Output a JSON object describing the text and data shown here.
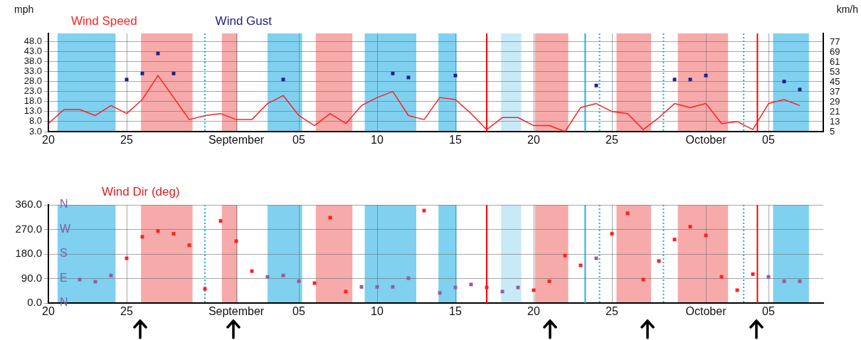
{
  "chart_data": [
    {
      "type": "line",
      "ylabel": "mph",
      "y2label": "km/h",
      "legend": "top left",
      "grid": true,
      "xlim": [
        "--08-20",
        "--10-08T12:00"
      ],
      "xticks": [
        {
          "value": "--08-20",
          "label": "20"
        },
        {
          "value": "--08-25",
          "label": "25"
        },
        {
          "value": "--09-01",
          "label": "September"
        },
        {
          "value": "--09-05",
          "label": "05"
        },
        {
          "value": "--09-10",
          "label": "10"
        },
        {
          "value": "--09-15",
          "label": "15"
        },
        {
          "value": "--09-20",
          "label": "20"
        },
        {
          "value": "--09-25",
          "label": "25"
        },
        {
          "value": "--10-01",
          "label": "October"
        },
        {
          "value": "--10-05",
          "label": "05"
        }
      ],
      "ylim": [
        3,
        52
      ],
      "yticks": [
        {
          "value": 3,
          "label": "3.0"
        },
        {
          "value": 8,
          "label": "8.0"
        },
        {
          "value": 13,
          "label": "13.0"
        },
        {
          "value": 18,
          "label": "18.0"
        },
        {
          "value": 23,
          "label": "23.0"
        },
        {
          "value": 28,
          "label": "28.0"
        },
        {
          "value": 33,
          "label": "33.0"
        },
        {
          "value": 38,
          "label": "38.0"
        },
        {
          "value": 43,
          "label": "43.0"
        },
        {
          "value": 48,
          "label": "48.0"
        }
      ],
      "y2lim": [
        5,
        84
      ],
      "y2ticks": [
        5,
        13,
        21,
        29,
        37,
        45,
        53,
        61,
        69,
        77
      ],
      "series": [
        {
          "name": "Wind Speed",
          "type": "line",
          "marker": "none",
          "color": "#ff2020",
          "x": [
            "--08-20",
            "--08-21",
            "--08-22",
            "--08-23",
            "--08-24",
            "--08-25",
            "--08-26",
            "--08-27",
            "--08-28",
            "--08-29",
            "--08-30",
            "--08-31",
            "--09-01",
            "--09-02",
            "--09-03",
            "--09-04",
            "--09-05",
            "--09-06",
            "--09-07",
            "--09-08",
            "--09-09",
            "--09-10",
            "--09-11",
            "--09-12",
            "--09-13",
            "--09-14",
            "--09-15",
            "--09-16",
            "--09-17",
            "--09-18",
            "--09-19",
            "--09-20",
            "--09-21",
            "--09-22",
            "--09-23",
            "--09-24",
            "--09-25",
            "--09-26",
            "--09-27",
            "--09-28",
            "--09-29",
            "--09-30",
            "--10-01",
            "--10-02",
            "--10-03",
            "--10-04",
            "--10-05",
            "--10-06",
            "--10-07"
          ],
          "values": [
            7,
            14,
            14,
            11,
            16,
            12,
            19,
            31,
            20,
            9,
            11,
            12,
            9,
            9,
            17,
            21,
            11,
            6,
            12,
            7,
            16,
            20,
            23,
            11,
            9,
            20,
            19,
            12,
            4,
            10,
            10,
            6,
            6,
            3,
            15,
            17,
            13,
            12,
            4,
            10,
            17,
            15,
            17,
            7,
            8,
            4,
            17,
            19,
            16
          ]
        },
        {
          "name": "Wind Gust",
          "type": "scatter",
          "marker": "square",
          "color": "#202088",
          "x": [
            "--08-25",
            "--08-26",
            "--08-27",
            "--08-28",
            "--09-04",
            "--09-11",
            "--09-12",
            "--09-15",
            "--09-24",
            "--09-29",
            "--09-30",
            "--10-01",
            "--10-06",
            "--10-07"
          ],
          "values": [
            29,
            32,
            42,
            32,
            29,
            32,
            30,
            31,
            26,
            29,
            29,
            31,
            28,
            24
          ]
        }
      ],
      "bands": [
        {
          "axis": "x",
          "from": "--08-20T14:00",
          "to": "--08-24T07:00",
          "color": "#80d0f0"
        },
        {
          "axis": "x",
          "from": "--08-25T22:00",
          "to": "--08-29T05:00",
          "color": "#f7aaaa"
        },
        {
          "axis": "x",
          "from": "--08-31T02:00",
          "to": "--09-01T02:00",
          "color": "#f7aaaa"
        },
        {
          "axis": "x",
          "from": "--09-03",
          "to": "--09-05T05:00",
          "color": "#80d0f0"
        },
        {
          "axis": "x",
          "from": "--09-06T02:00",
          "to": "--09-08T10:00",
          "color": "#f7aaaa"
        },
        {
          "axis": "x",
          "from": "--09-09T05:00",
          "to": "--09-12T12:00",
          "color": "#80d0f0"
        },
        {
          "axis": "x",
          "from": "--09-13T22:00",
          "to": "--09-15T02:00",
          "color": "#80d0f0"
        },
        {
          "axis": "x",
          "from": "--09-17T22:00",
          "to": "--09-19T05:00",
          "color": "#c8eaf8"
        },
        {
          "axis": "x",
          "from": "--09-20T02:00",
          "to": "--09-22T05:00",
          "color": "#f7aaaa"
        },
        {
          "axis": "x",
          "from": "--09-25T07:00",
          "to": "--09-27T12:00",
          "color": "#f7aaaa"
        },
        {
          "axis": "x",
          "from": "--09-29T05:00",
          "to": "--10-02T10:00",
          "color": "#f7aaaa"
        },
        {
          "axis": "x",
          "from": "--10-05T07:00",
          "to": "--10-07T14:00",
          "color": "#80d0f0"
        }
      ],
      "ref_lines": [
        {
          "axis": "x",
          "value": "--08-30",
          "color": "#1ab0e0",
          "line_style": "dotted"
        },
        {
          "axis": "x",
          "value": "--09-17",
          "color": "#ff0000",
          "line_style": "solid"
        },
        {
          "axis": "x",
          "value": "--09-23T07:00",
          "color": "#1ab0e0",
          "line_style": "solid"
        },
        {
          "axis": "x",
          "value": "--09-24T05:00",
          "color": "#1ab0e0",
          "line_style": "dotted"
        },
        {
          "axis": "x",
          "value": "--09-28T07:00",
          "color": "#1ab0e0",
          "line_style": "dotted"
        },
        {
          "axis": "x",
          "value": "--10-03T10:00",
          "color": "#1ab0e0",
          "line_style": "dotted"
        },
        {
          "axis": "x",
          "value": "--10-04T07:00",
          "color": "#ff0000",
          "line_style": "solid"
        }
      ]
    },
    {
      "type": "scatter",
      "ylabel": "Wind Dir (deg)",
      "grid": true,
      "marker": "square",
      "xlim": [
        "--08-20",
        "--10-08T12:00"
      ],
      "xticks": [
        {
          "value": "--08-20",
          "label": "20"
        },
        {
          "value": "--08-25",
          "label": "25"
        },
        {
          "value": "--09-01",
          "label": "September"
        },
        {
          "value": "--09-05",
          "label": "05"
        },
        {
          "value": "--09-10",
          "label": "10"
        },
        {
          "value": "--09-15",
          "label": "15"
        },
        {
          "value": "--09-20",
          "label": "20"
        },
        {
          "value": "--09-25",
          "label": "25"
        },
        {
          "value": "--10-01",
          "label": "October"
        },
        {
          "value": "--10-05",
          "label": "05"
        }
      ],
      "ylim": [
        0,
        360
      ],
      "yticks": [
        {
          "value": 0,
          "label": "0.0"
        },
        {
          "value": 90,
          "label": "90.0"
        },
        {
          "value": 180,
          "label": "180.0"
        },
        {
          "value": 270,
          "label": "270.0"
        },
        {
          "value": 360,
          "label": "360.0"
        }
      ],
      "annotations": [
        "N",
        "W",
        "S",
        "E",
        "N"
      ],
      "x": [
        "--08-22",
        "--08-23",
        "--08-24",
        "--08-25",
        "--08-26",
        "--08-27",
        "--08-28",
        "--08-29",
        "--08-30",
        "--08-31",
        "--09-01",
        "--09-02",
        "--09-03",
        "--09-04",
        "--09-05",
        "--09-06",
        "--09-07",
        "--09-08",
        "--09-09",
        "--09-10",
        "--09-11",
        "--09-12",
        "--09-13",
        "--09-14",
        "--09-15",
        "--09-16",
        "--09-17",
        "--09-18",
        "--09-19",
        "--09-20",
        "--09-21",
        "--09-22",
        "--09-23",
        "--09-24",
        "--09-25",
        "--09-26",
        "--09-27",
        "--09-28",
        "--09-29",
        "--09-30",
        "--10-01",
        "--10-02",
        "--10-03",
        "--10-04",
        "--10-05",
        "--10-06",
        "--10-07"
      ],
      "values": [
        86,
        78,
        101,
        164,
        243,
        264,
        254,
        212,
        52,
        301,
        227,
        117,
        96,
        101,
        80,
        73,
        313,
        42,
        59,
        59,
        59,
        91,
        339,
        37,
        57,
        68,
        57,
        42,
        57,
        47,
        80,
        174,
        138,
        164,
        254,
        329,
        86,
        154,
        233,
        280,
        248,
        96,
        47,
        106,
        96,
        80,
        80
      ],
      "colors": [
        "#9060a0",
        "#9060a0",
        "#9060a0",
        "#ff2020",
        "#ff2020",
        "#ff2020",
        "#ff2020",
        "#ff2020",
        "#ff2020",
        "#ff2020",
        "#ff2020",
        "#ff2020",
        "#9060a0",
        "#9060a0",
        "#9060a0",
        "#ff2020",
        "#ff2020",
        "#ff2020",
        "#9060a0",
        "#9060a0",
        "#9060a0",
        "#9060a0",
        "#ff2020",
        "#9060a0",
        "#9060a0",
        "#9060a0",
        "#ff2020",
        "#9060a0",
        "#9060a0",
        "#ff2020",
        "#ff2020",
        "#ff2020",
        "#ff2020",
        "#9060a0",
        "#ff2020",
        "#ff2020",
        "#ff2020",
        "#ff2020",
        "#ff2020",
        "#ff2020",
        "#ff2020",
        "#ff2020",
        "#ff2020",
        "#ff2020",
        "#9060a0",
        "#9060a0",
        "#9060a0"
      ],
      "bands": [
        {
          "axis": "x",
          "from": "--08-20T14:00",
          "to": "--08-24T07:00",
          "color": "#80d0f0"
        },
        {
          "axis": "x",
          "from": "--08-25T22:00",
          "to": "--08-29T05:00",
          "color": "#f7aaaa"
        },
        {
          "axis": "x",
          "from": "--08-31T02:00",
          "to": "--09-01T02:00",
          "color": "#f7aaaa"
        },
        {
          "axis": "x",
          "from": "--09-03",
          "to": "--09-05T05:00",
          "color": "#80d0f0"
        },
        {
          "axis": "x",
          "from": "--09-06T02:00",
          "to": "--09-08T10:00",
          "color": "#f7aaaa"
        },
        {
          "axis": "x",
          "from": "--09-09T05:00",
          "to": "--09-12T12:00",
          "color": "#80d0f0"
        },
        {
          "axis": "x",
          "from": "--09-13T22:00",
          "to": "--09-15T02:00",
          "color": "#80d0f0"
        },
        {
          "axis": "x",
          "from": "--09-17T22:00",
          "to": "--09-19T05:00",
          "color": "#c8eaf8"
        },
        {
          "axis": "x",
          "from": "--09-20T02:00",
          "to": "--09-22T05:00",
          "color": "#f7aaaa"
        },
        {
          "axis": "x",
          "from": "--09-25T07:00",
          "to": "--09-27T12:00",
          "color": "#f7aaaa"
        },
        {
          "axis": "x",
          "from": "--09-29T05:00",
          "to": "--10-02T10:00",
          "color": "#f7aaaa"
        },
        {
          "axis": "x",
          "from": "--10-05T07:00",
          "to": "--10-07T14:00",
          "color": "#80d0f0"
        }
      ],
      "ref_lines": [
        {
          "axis": "x",
          "value": "--08-30",
          "color": "#1ab0e0",
          "line_style": "dotted"
        },
        {
          "axis": "x",
          "value": "--09-17",
          "color": "#ff0000",
          "line_style": "solid"
        },
        {
          "axis": "x",
          "value": "--09-23T07:00",
          "color": "#1ab0e0",
          "line_style": "solid"
        },
        {
          "axis": "x",
          "value": "--09-24T05:00",
          "color": "#1ab0e0",
          "line_style": "dotted"
        },
        {
          "axis": "x",
          "value": "--09-28T07:00",
          "color": "#1ab0e0",
          "line_style": "dotted"
        },
        {
          "axis": "x",
          "value": "--10-03T10:00",
          "color": "#1ab0e0",
          "line_style": "dotted"
        },
        {
          "axis": "x",
          "value": "--10-04T07:00",
          "color": "#ff0000",
          "line_style": "solid"
        }
      ]
    }
  ]
}
